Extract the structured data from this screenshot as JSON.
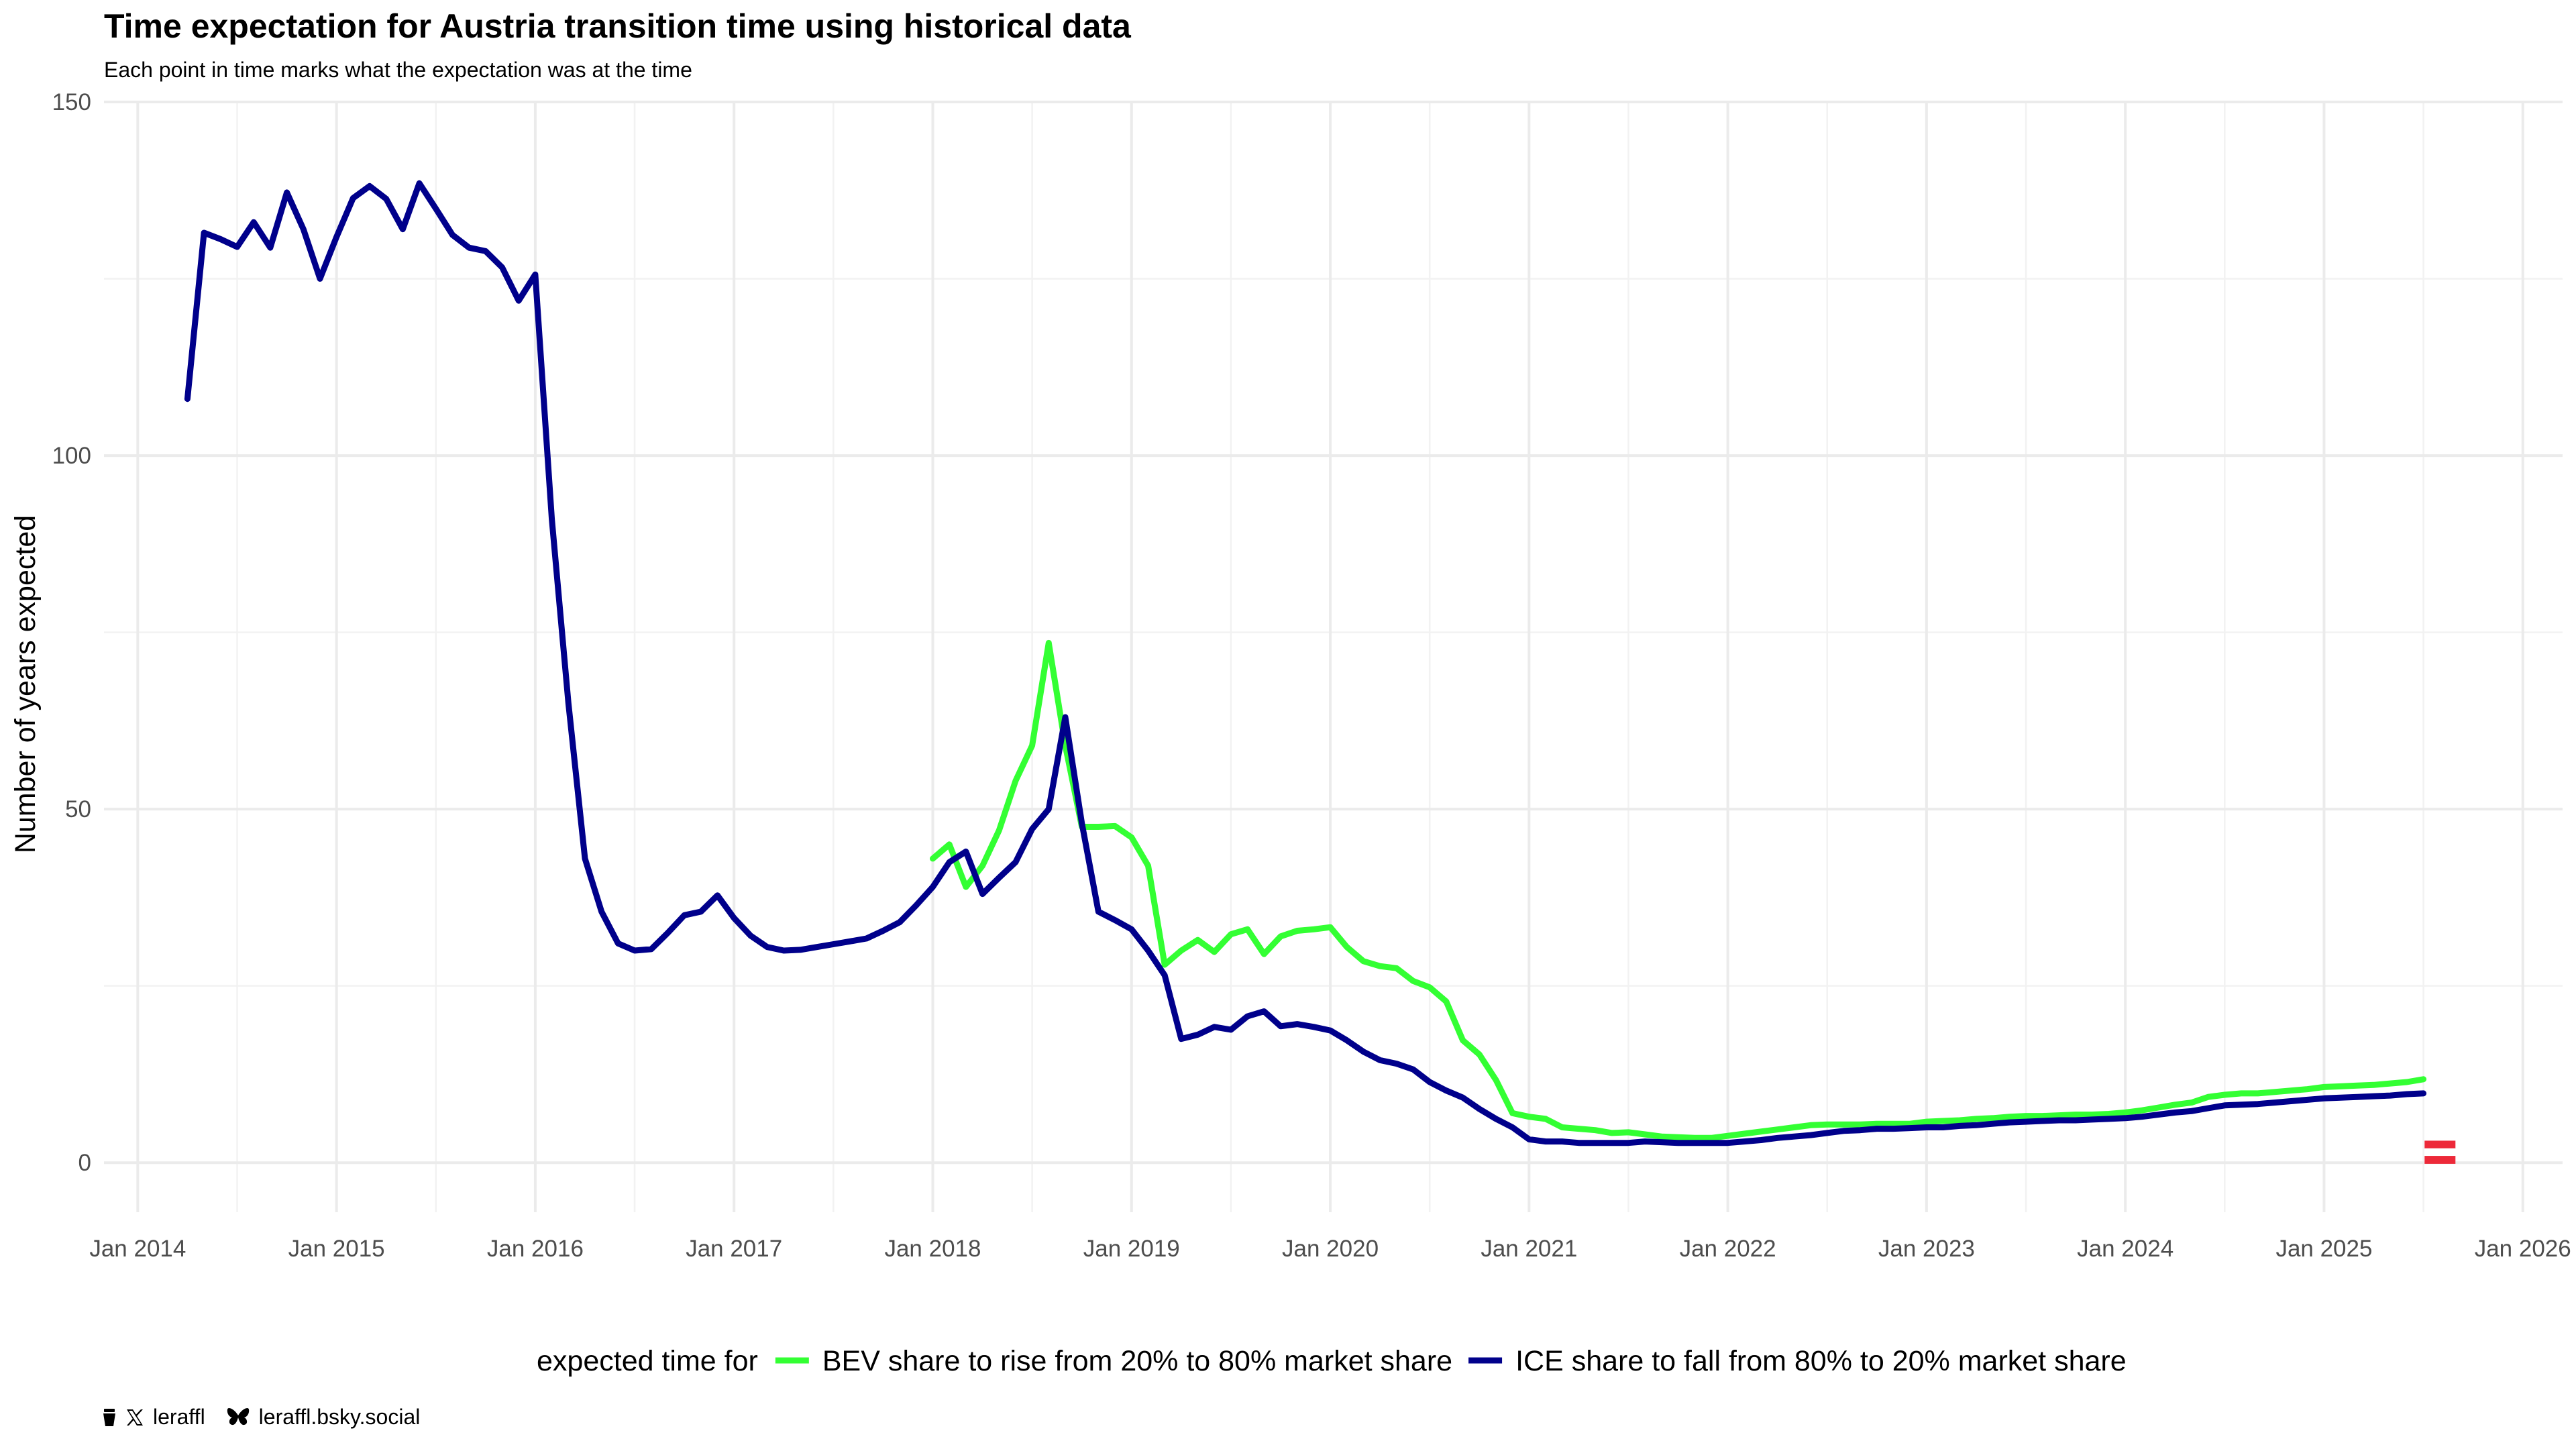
{
  "chart_data": {
    "type": "line",
    "title": "Time expectation for Austria transition time using historical data",
    "subtitle": "Each point in time marks what the expectation was at the time",
    "xlabel": "",
    "ylabel": "Number of years expected",
    "ylim": [
      -7,
      150
    ],
    "y_ticks": [
      0,
      50,
      100,
      150
    ],
    "x_ticks": [
      "Jan 2014",
      "Jan 2015",
      "Jan 2016",
      "Jan 2017",
      "Jan 2018",
      "Jan 2019",
      "Jan 2020",
      "Jan 2021",
      "Jan 2022",
      "Jan 2023",
      "Jan 2024",
      "Jan 2025",
      "Jan 2026"
    ],
    "grid": true,
    "legend_position": "bottom",
    "legend_title": "expected time for",
    "series": [
      {
        "name": "BEV share to rise from 20% to 80% market share",
        "color": "#33ff33",
        "x": [
          "2018-01",
          "2018-02",
          "2018-03",
          "2018-04",
          "2018-05",
          "2018-06",
          "2018-07",
          "2018-08",
          "2018-09",
          "2018-10",
          "2018-11",
          "2018-12",
          "2019-01",
          "2019-02",
          "2019-03",
          "2019-04",
          "2019-05",
          "2019-06",
          "2019-07",
          "2019-08",
          "2019-09",
          "2019-10",
          "2019-11",
          "2019-12",
          "2020-01",
          "2020-02",
          "2020-03",
          "2020-04",
          "2020-05",
          "2020-06",
          "2020-07",
          "2020-08",
          "2020-09",
          "2020-10",
          "2020-11",
          "2020-12",
          "2021-01",
          "2021-02",
          "2021-03",
          "2021-04",
          "2021-05",
          "2021-06",
          "2021-07",
          "2021-08",
          "2021-09",
          "2021-10",
          "2021-11",
          "2021-12",
          "2022-01",
          "2022-02",
          "2022-03",
          "2022-04",
          "2022-05",
          "2022-06",
          "2022-07",
          "2022-08",
          "2022-09",
          "2022-10",
          "2022-11",
          "2022-12",
          "2023-01",
          "2023-02",
          "2023-03",
          "2023-04",
          "2023-05",
          "2023-06",
          "2023-07",
          "2023-08",
          "2023-09",
          "2023-10",
          "2023-11",
          "2023-12",
          "2024-01",
          "2024-02",
          "2024-03",
          "2024-04",
          "2024-05",
          "2024-06",
          "2024-07",
          "2024-08",
          "2024-09",
          "2024-10",
          "2024-11",
          "2024-12",
          "2025-01",
          "2025-02",
          "2025-03",
          "2025-04",
          "2025-05",
          "2025-06",
          "2025-07"
        ],
        "y": [
          43,
          45,
          39,
          42,
          47,
          54,
          59,
          73.5,
          59,
          47.5,
          47.5,
          47.6,
          46,
          42,
          28,
          30,
          31.5,
          29.8,
          32.3,
          33,
          29.5,
          32,
          32.8,
          33,
          33.3,
          30.5,
          28.5,
          27.8,
          27.5,
          25.7,
          24.8,
          22.8,
          17.3,
          15.3,
          11.7,
          7,
          6.5,
          6.2,
          5,
          4.8,
          4.6,
          4.2,
          4.3,
          4,
          3.7,
          3.6,
          3.5,
          3.5,
          3.8,
          4.1,
          4.4,
          4.7,
          5,
          5.3,
          5.4,
          5.4,
          5.4,
          5.5,
          5.5,
          5.5,
          5.8,
          5.9,
          6,
          6.2,
          6.3,
          6.5,
          6.6,
          6.6,
          6.7,
          6.8,
          6.8,
          6.9,
          7.1,
          7.4,
          7.8,
          8.2,
          8.5,
          9.3,
          9.6,
          9.8,
          9.8,
          10,
          10.2,
          10.4,
          10.7,
          10.8,
          10.9,
          11,
          11.2,
          11.4,
          11.8
        ]
      },
      {
        "name": "ICE share to fall from 80% to 20% market share",
        "color": "#00008b",
        "x": [
          "2014-04",
          "2014-05",
          "2014-06",
          "2014-07",
          "2014-08",
          "2014-09",
          "2014-10",
          "2014-11",
          "2014-12",
          "2015-01",
          "2015-02",
          "2015-03",
          "2015-04",
          "2015-05",
          "2015-06",
          "2015-07",
          "2015-08",
          "2015-09",
          "2015-10",
          "2015-11",
          "2015-12",
          "2016-01",
          "2016-02",
          "2016-03",
          "2016-04",
          "2016-05",
          "2016-06",
          "2016-07",
          "2016-08",
          "2016-09",
          "2016-10",
          "2016-11",
          "2016-12",
          "2017-01",
          "2017-02",
          "2017-03",
          "2017-04",
          "2017-05",
          "2017-06",
          "2017-07",
          "2017-08",
          "2017-09",
          "2017-10",
          "2017-11",
          "2017-12",
          "2018-01",
          "2018-02",
          "2018-03",
          "2018-04",
          "2018-05",
          "2018-06",
          "2018-07",
          "2018-08",
          "2018-09",
          "2018-10",
          "2018-11",
          "2018-12",
          "2019-01",
          "2019-02",
          "2019-03",
          "2019-04",
          "2019-05",
          "2019-06",
          "2019-07",
          "2019-08",
          "2019-09",
          "2019-10",
          "2019-11",
          "2019-12",
          "2020-01",
          "2020-02",
          "2020-03",
          "2020-04",
          "2020-05",
          "2020-06",
          "2020-07",
          "2020-08",
          "2020-09",
          "2020-10",
          "2020-11",
          "2020-12",
          "2021-01",
          "2021-02",
          "2021-03",
          "2021-04",
          "2021-05",
          "2021-06",
          "2021-07",
          "2021-08",
          "2021-09",
          "2021-10",
          "2021-11",
          "2021-12",
          "2022-01",
          "2022-02",
          "2022-03",
          "2022-04",
          "2022-05",
          "2022-06",
          "2022-07",
          "2022-08",
          "2022-09",
          "2022-10",
          "2022-11",
          "2022-12",
          "2023-01",
          "2023-02",
          "2023-03",
          "2023-04",
          "2023-05",
          "2023-06",
          "2023-07",
          "2023-08",
          "2023-09",
          "2023-10",
          "2023-11",
          "2023-12",
          "2024-01",
          "2024-02",
          "2024-03",
          "2024-04",
          "2024-05",
          "2024-06",
          "2024-07",
          "2024-08",
          "2024-09",
          "2024-10",
          "2024-11",
          "2024-12",
          "2025-01",
          "2025-02",
          "2025-03",
          "2025-04",
          "2025-05",
          "2025-06",
          "2025-07"
        ],
        "y": [
          108,
          131.5,
          130.6,
          129.5,
          133,
          129.4,
          137.2,
          132,
          125,
          130.9,
          136.4,
          138.1,
          136.3,
          132,
          138.5,
          134.9,
          131.2,
          129.4,
          128.9,
          126.6,
          121.9,
          125.6,
          91,
          65,
          43,
          35.5,
          31,
          30,
          30.2,
          32.5,
          35,
          35.5,
          37.8,
          34.6,
          32.1,
          30.5,
          30,
          30.1,
          30.5,
          30.9,
          31.3,
          31.7,
          32.8,
          34,
          36.4,
          39,
          42.5,
          44,
          38,
          40.3,
          42.5,
          47.2,
          50,
          63,
          48,
          35.5,
          34.3,
          33,
          30,
          26.5,
          17.5,
          18.1,
          19.2,
          18.8,
          20.7,
          21.4,
          19.3,
          19.6,
          19.2,
          18.7,
          17.3,
          15.7,
          14.5,
          14,
          13.2,
          11.4,
          10.2,
          9.2,
          7.6,
          6.2,
          5,
          3.3,
          3,
          3,
          2.8,
          2.8,
          2.8,
          2.8,
          3,
          2.9,
          2.8,
          2.8,
          2.8,
          2.8,
          3,
          3.2,
          3.5,
          3.7,
          3.9,
          4.2,
          4.5,
          4.6,
          4.8,
          4.8,
          4.9,
          5,
          5,
          5.2,
          5.3,
          5.5,
          5.7,
          5.8,
          5.9,
          6,
          6,
          6.1,
          6.2,
          6.3,
          6.5,
          6.8,
          7.1,
          7.3,
          7.7,
          8.1,
          8.2,
          8.3,
          8.5,
          8.7,
          8.9,
          9.1,
          9.2,
          9.3,
          9.4,
          9.5,
          9.7,
          9.8
        ]
      }
    ],
    "flag": {
      "country": "Austria",
      "colors": [
        "#ED2939",
        "#ffffff",
        "#ED2939"
      ],
      "at_x": "2025-08",
      "at_y": 1.5
    }
  },
  "caption": {
    "x_handle": "leraffl",
    "bsky_handle": "leraffl.bsky.social"
  }
}
